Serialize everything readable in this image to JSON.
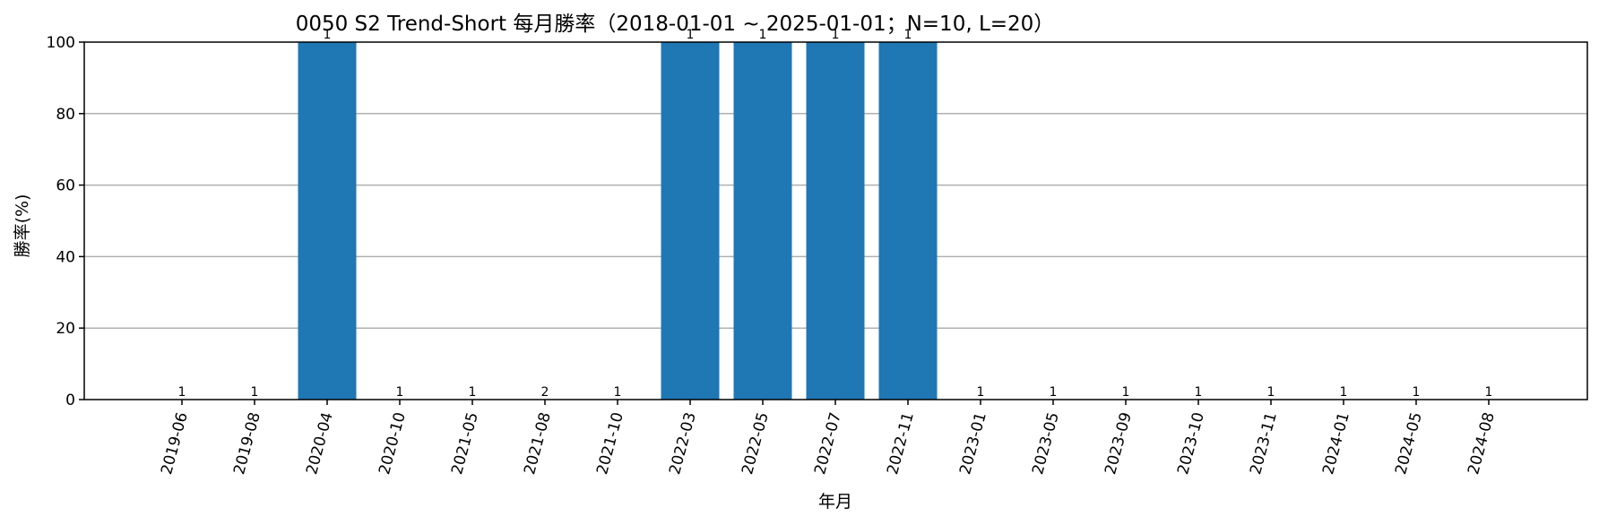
{
  "chart_data": {
    "type": "bar",
    "title": "0050 S2 Trend-Short 每月勝率（2018-01-01 ~ 2025-01-01；N=10, L=20）",
    "xlabel": "年月",
    "ylabel": "勝率(%)",
    "ylim": [
      0,
      100
    ],
    "yticks": [
      0,
      20,
      40,
      60,
      80,
      100
    ],
    "grid": "y",
    "color": "#1f77b4",
    "categories": [
      "2019-06",
      "2019-08",
      "2020-04",
      "2020-10",
      "2021-05",
      "2021-08",
      "2021-10",
      "2022-03",
      "2022-05",
      "2022-07",
      "2022-11",
      "2023-01",
      "2023-05",
      "2023-09",
      "2023-10",
      "2023-11",
      "2024-01",
      "2024-05",
      "2024-08"
    ],
    "values": [
      0,
      0,
      100,
      0,
      0,
      0,
      0,
      100,
      100,
      100,
      100,
      0,
      0,
      0,
      0,
      0,
      0,
      0,
      0
    ],
    "counts": [
      "1",
      "1",
      "1",
      "1",
      "1",
      "2",
      "1",
      "1",
      "1",
      "1",
      "1",
      "1",
      "1",
      "1",
      "1",
      "1",
      "1",
      "1",
      "1"
    ]
  }
}
